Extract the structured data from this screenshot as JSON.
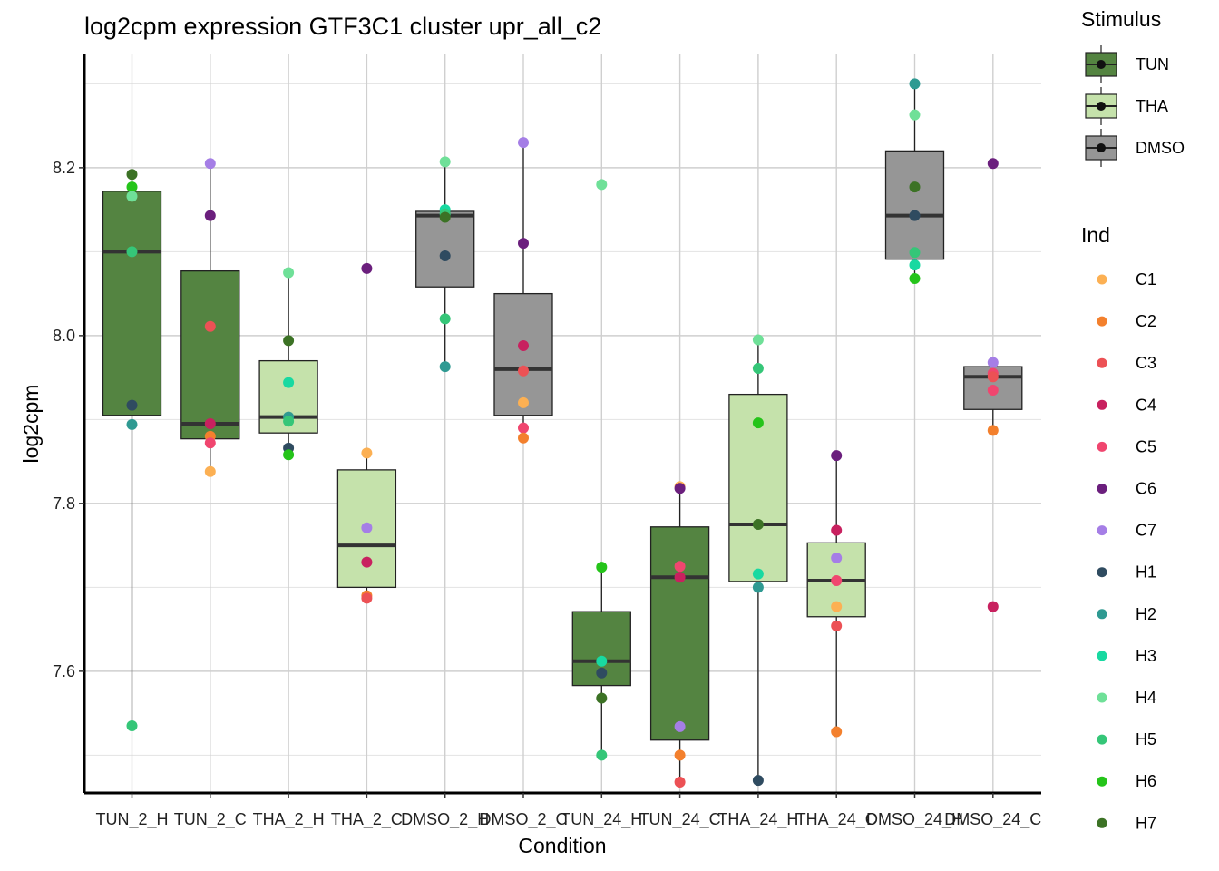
{
  "chart_data": {
    "type": "boxplot",
    "title": "log2cpm expression GTF3C1 cluster upr_all_c2",
    "xlabel": "Condition",
    "ylabel": "log2cpm",
    "ylim": [
      7.455,
      8.335
    ],
    "yticks": [
      7.6,
      7.8,
      8.0,
      8.2
    ],
    "ytick_labels": [
      "7.6",
      "7.8",
      "8.0",
      "8.2"
    ],
    "grid": true,
    "categories": [
      "TUN_2_H",
      "TUN_2_C",
      "THA_2_H",
      "THA_2_C",
      "DMSO_2_H",
      "DMSO_2_C",
      "TUN_24_H",
      "TUN_24_C",
      "THA_24_H",
      "THA_24_C",
      "DMSO_24_H",
      "DMSO_24_C"
    ],
    "stimulus_colors": {
      "TUN": "#548441",
      "THA": "#c5e2ab",
      "DMSO": "#969696"
    },
    "boxes": [
      {
        "condition": "TUN_2_H",
        "stimulus": "TUN",
        "lower_whisker": 7.535,
        "q1": 7.905,
        "median": 8.1,
        "q3": 8.172,
        "upper_whisker": 8.192
      },
      {
        "condition": "TUN_2_C",
        "stimulus": "TUN",
        "lower_whisker": 7.838,
        "q1": 7.877,
        "median": 7.895,
        "q3": 8.077,
        "upper_whisker": 8.205
      },
      {
        "condition": "THA_2_H",
        "stimulus": "THA",
        "lower_whisker": 7.858,
        "q1": 7.884,
        "median": 7.903,
        "q3": 7.97,
        "upper_whisker": 8.075
      },
      {
        "condition": "THA_2_C",
        "stimulus": "THA",
        "lower_whisker": 7.687,
        "q1": 7.7,
        "median": 7.75,
        "q3": 7.84,
        "upper_whisker": 7.86
      },
      {
        "condition": "DMSO_2_H",
        "stimulus": "DMSO",
        "lower_whisker": 7.963,
        "q1": 8.058,
        "median": 8.143,
        "q3": 8.148,
        "upper_whisker": 8.207
      },
      {
        "condition": "DMSO_2_C",
        "stimulus": "DMSO",
        "lower_whisker": 7.878,
        "q1": 7.905,
        "median": 7.96,
        "q3": 8.05,
        "upper_whisker": 8.23
      },
      {
        "condition": "TUN_24_H",
        "stimulus": "TUN",
        "lower_whisker": 7.5,
        "q1": 7.583,
        "median": 7.612,
        "q3": 7.671,
        "upper_whisker": 7.724
      },
      {
        "condition": "TUN_24_C",
        "stimulus": "TUN",
        "lower_whisker": 7.468,
        "q1": 7.518,
        "median": 7.712,
        "q3": 7.772,
        "upper_whisker": 7.82
      },
      {
        "condition": "THA_24_H",
        "stimulus": "THA",
        "lower_whisker": 7.47,
        "q1": 7.707,
        "median": 7.775,
        "q3": 7.93,
        "upper_whisker": 7.995
      },
      {
        "condition": "THA_24_C",
        "stimulus": "THA",
        "lower_whisker": 7.528,
        "q1": 7.665,
        "median": 7.708,
        "q3": 7.753,
        "upper_whisker": 7.857
      },
      {
        "condition": "DMSO_24_H",
        "stimulus": "DMSO",
        "lower_whisker": 8.068,
        "q1": 8.091,
        "median": 8.143,
        "q3": 8.22,
        "upper_whisker": 8.3
      },
      {
        "condition": "DMSO_24_C",
        "stimulus": "DMSO",
        "lower_whisker": 7.887,
        "q1": 7.912,
        "median": 7.951,
        "q3": 7.963,
        "upper_whisker": 7.968
      }
    ],
    "points": [
      {
        "condition": "TUN_2_H",
        "ind": "H7",
        "value": 8.192
      },
      {
        "condition": "TUN_2_H",
        "ind": "H6",
        "value": 8.177
      },
      {
        "condition": "TUN_2_H",
        "ind": "H4",
        "value": 8.166
      },
      {
        "condition": "TUN_2_H",
        "ind": "H5",
        "value": 8.1
      },
      {
        "condition": "TUN_2_H",
        "ind": "H1",
        "value": 7.917
      },
      {
        "condition": "TUN_2_H",
        "ind": "H2",
        "value": 7.894
      },
      {
        "condition": "TUN_2_H",
        "ind": "H5",
        "value": 7.535
      },
      {
        "condition": "TUN_2_C",
        "ind": "C7",
        "value": 8.205
      },
      {
        "condition": "TUN_2_C",
        "ind": "C6",
        "value": 8.143
      },
      {
        "condition": "TUN_2_C",
        "ind": "C3",
        "value": 8.011
      },
      {
        "condition": "TUN_2_C",
        "ind": "C4",
        "value": 7.895
      },
      {
        "condition": "TUN_2_C",
        "ind": "C2",
        "value": 7.88
      },
      {
        "condition": "TUN_2_C",
        "ind": "C5",
        "value": 7.872
      },
      {
        "condition": "TUN_2_C",
        "ind": "C1",
        "value": 7.838
      },
      {
        "condition": "THA_2_H",
        "ind": "H4",
        "value": 8.075
      },
      {
        "condition": "THA_2_H",
        "ind": "H7",
        "value": 7.994
      },
      {
        "condition": "THA_2_H",
        "ind": "H3",
        "value": 7.944
      },
      {
        "condition": "THA_2_H",
        "ind": "H2",
        "value": 7.903
      },
      {
        "condition": "THA_2_H",
        "ind": "H5",
        "value": 7.898
      },
      {
        "condition": "THA_2_H",
        "ind": "H1",
        "value": 7.866
      },
      {
        "condition": "THA_2_H",
        "ind": "H6",
        "value": 7.858
      },
      {
        "condition": "THA_2_C",
        "ind": "C6",
        "value": 8.08
      },
      {
        "condition": "THA_2_C",
        "ind": "C1",
        "value": 7.86
      },
      {
        "condition": "THA_2_C",
        "ind": "C7",
        "value": 7.771
      },
      {
        "condition": "THA_2_C",
        "ind": "C4",
        "value": 7.73
      },
      {
        "condition": "THA_2_C",
        "ind": "C2",
        "value": 7.69
      },
      {
        "condition": "THA_2_C",
        "ind": "C3",
        "value": 7.687
      },
      {
        "condition": "DMSO_2_H",
        "ind": "H4",
        "value": 8.207
      },
      {
        "condition": "DMSO_2_H",
        "ind": "H3",
        "value": 8.15
      },
      {
        "condition": "DMSO_2_H",
        "ind": "H5",
        "value": 8.145
      },
      {
        "condition": "DMSO_2_H",
        "ind": "H7",
        "value": 8.141
      },
      {
        "condition": "DMSO_2_H",
        "ind": "H1",
        "value": 8.095
      },
      {
        "condition": "DMSO_2_H",
        "ind": "H5",
        "value": 8.02
      },
      {
        "condition": "DMSO_2_H",
        "ind": "H2",
        "value": 7.963
      },
      {
        "condition": "DMSO_2_C",
        "ind": "C7",
        "value": 8.23
      },
      {
        "condition": "DMSO_2_C",
        "ind": "C6",
        "value": 8.11
      },
      {
        "condition": "DMSO_2_C",
        "ind": "C4",
        "value": 7.988
      },
      {
        "condition": "DMSO_2_C",
        "ind": "C3",
        "value": 7.958
      },
      {
        "condition": "DMSO_2_C",
        "ind": "C1",
        "value": 7.92
      },
      {
        "condition": "DMSO_2_C",
        "ind": "C5",
        "value": 7.89
      },
      {
        "condition": "DMSO_2_C",
        "ind": "C2",
        "value": 7.878
      },
      {
        "condition": "TUN_24_H",
        "ind": "H4",
        "value": 8.18
      },
      {
        "condition": "TUN_24_H",
        "ind": "H6",
        "value": 7.724
      },
      {
        "condition": "TUN_24_H",
        "ind": "H3",
        "value": 7.612
      },
      {
        "condition": "TUN_24_H",
        "ind": "H1",
        "value": 7.598
      },
      {
        "condition": "TUN_24_H",
        "ind": "H7",
        "value": 7.568
      },
      {
        "condition": "TUN_24_H",
        "ind": "H5",
        "value": 7.5
      },
      {
        "condition": "TUN_24_C",
        "ind": "C1",
        "value": 7.82
      },
      {
        "condition": "TUN_24_C",
        "ind": "C6",
        "value": 7.818
      },
      {
        "condition": "TUN_24_C",
        "ind": "C5",
        "value": 7.725
      },
      {
        "condition": "TUN_24_C",
        "ind": "C4",
        "value": 7.712
      },
      {
        "condition": "TUN_24_C",
        "ind": "C7",
        "value": 7.534
      },
      {
        "condition": "TUN_24_C",
        "ind": "C2",
        "value": 7.5
      },
      {
        "condition": "TUN_24_C",
        "ind": "C3",
        "value": 7.468
      },
      {
        "condition": "THA_24_H",
        "ind": "H4",
        "value": 7.995
      },
      {
        "condition": "THA_24_H",
        "ind": "H5",
        "value": 7.961
      },
      {
        "condition": "THA_24_H",
        "ind": "H6",
        "value": 7.896
      },
      {
        "condition": "THA_24_H",
        "ind": "H7",
        "value": 7.775
      },
      {
        "condition": "THA_24_H",
        "ind": "H3",
        "value": 7.716
      },
      {
        "condition": "THA_24_H",
        "ind": "H2",
        "value": 7.7
      },
      {
        "condition": "THA_24_H",
        "ind": "H1",
        "value": 7.47
      },
      {
        "condition": "THA_24_C",
        "ind": "C6",
        "value": 7.857
      },
      {
        "condition": "THA_24_C",
        "ind": "C4",
        "value": 7.768
      },
      {
        "condition": "THA_24_C",
        "ind": "C7",
        "value": 7.735
      },
      {
        "condition": "THA_24_C",
        "ind": "C5",
        "value": 7.708
      },
      {
        "condition": "THA_24_C",
        "ind": "C1",
        "value": 7.677
      },
      {
        "condition": "THA_24_C",
        "ind": "C3",
        "value": 7.654
      },
      {
        "condition": "THA_24_C",
        "ind": "C2",
        "value": 7.528
      },
      {
        "condition": "DMSO_24_H",
        "ind": "H2",
        "value": 8.3
      },
      {
        "condition": "DMSO_24_H",
        "ind": "H4",
        "value": 8.263
      },
      {
        "condition": "DMSO_24_H",
        "ind": "H7",
        "value": 8.177
      },
      {
        "condition": "DMSO_24_H",
        "ind": "H1",
        "value": 8.143
      },
      {
        "condition": "DMSO_24_H",
        "ind": "H5",
        "value": 8.099
      },
      {
        "condition": "DMSO_24_H",
        "ind": "H3",
        "value": 8.084
      },
      {
        "condition": "DMSO_24_H",
        "ind": "H6",
        "value": 8.068
      },
      {
        "condition": "DMSO_24_C",
        "ind": "C6",
        "value": 8.205
      },
      {
        "condition": "DMSO_24_C",
        "ind": "C7",
        "value": 7.968
      },
      {
        "condition": "DMSO_24_C",
        "ind": "C5",
        "value": 7.955
      },
      {
        "condition": "DMSO_24_C",
        "ind": "C3",
        "value": 7.951
      },
      {
        "condition": "DMSO_24_C",
        "ind": "C5",
        "value": 7.935
      },
      {
        "condition": "DMSO_24_C",
        "ind": "C2",
        "value": 7.887
      },
      {
        "condition": "DMSO_24_C",
        "ind": "C4",
        "value": 7.677
      }
    ],
    "legends": {
      "stimulus": {
        "title": "Stimulus",
        "items": [
          {
            "label": "TUN",
            "color": "#548441"
          },
          {
            "label": "THA",
            "color": "#c5e2ab"
          },
          {
            "label": "DMSO",
            "color": "#969696"
          }
        ]
      },
      "ind": {
        "title": "Ind",
        "items": [
          {
            "label": "C1",
            "color": "#fcb053"
          },
          {
            "label": "C2",
            "color": "#f3802d"
          },
          {
            "label": "C3",
            "color": "#ec5155"
          },
          {
            "label": "C4",
            "color": "#c8215f"
          },
          {
            "label": "C5",
            "color": "#f0466f"
          },
          {
            "label": "C6",
            "color": "#6b1f7d"
          },
          {
            "label": "C7",
            "color": "#a57ee6"
          },
          {
            "label": "H1",
            "color": "#2f4b60"
          },
          {
            "label": "H2",
            "color": "#2f9a92"
          },
          {
            "label": "H3",
            "color": "#18d9a1"
          },
          {
            "label": "H4",
            "color": "#6fe098"
          },
          {
            "label": "H5",
            "color": "#35c678"
          },
          {
            "label": "H6",
            "color": "#25c41a"
          },
          {
            "label": "H7",
            "color": "#3c7225"
          }
        ]
      }
    }
  }
}
